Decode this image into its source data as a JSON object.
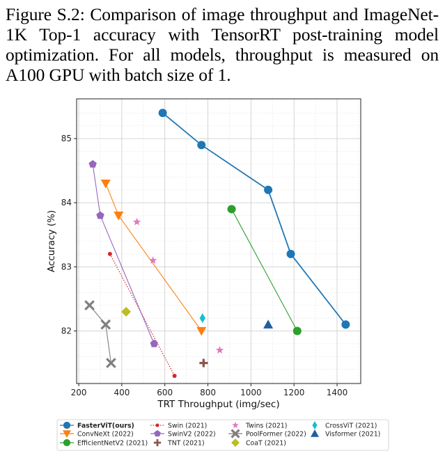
{
  "caption": "Figure S.2: Comparison of image throughput and ImageNet-1K Top-1 accuracy with TensorRT post-training model optimization. For all models, throughput is measured on A100 GPU with batch size of 1.",
  "chart_data": {
    "type": "scatter",
    "xlabel": "TRT Throughput (img/sec)",
    "ylabel": "Accuracy (%)",
    "xlim": [
      190,
      1510
    ],
    "ylim": [
      81.18,
      85.62
    ],
    "xticks": [
      200,
      400,
      600,
      800,
      1000,
      1200,
      1400
    ],
    "yticks": [
      82,
      83,
      84,
      85
    ],
    "grid": true,
    "legend_placement": "bottom",
    "series": [
      {
        "name": "FasterViT(ours)",
        "color": "#1f77b4",
        "marker": "circle",
        "line": "solid",
        "size": 6,
        "x": [
          590,
          770,
          1080,
          1185,
          1440
        ],
        "y": [
          85.4,
          84.9,
          84.2,
          83.2,
          82.1
        ]
      },
      {
        "name": "ConvNeXt (2022)",
        "color": "#ff7f0e",
        "marker": "triangle-down",
        "line": "solid",
        "size": 7,
        "x": [
          325,
          385,
          770
        ],
        "y": [
          84.3,
          83.8,
          82.0
        ]
      },
      {
        "name": "EfficientNetV2 (2021)",
        "color": "#2ca02c",
        "marker": "circle",
        "line": "solid",
        "size": 6,
        "x": [
          910,
          1215
        ],
        "y": [
          83.9,
          82.0
        ]
      },
      {
        "name": "Swin (2021)",
        "color": "#d62728",
        "marker": "small-circle",
        "line": "dotted",
        "size": 3,
        "x": [
          345,
          645
        ],
        "y": [
          83.2,
          81.3
        ]
      },
      {
        "name": "SwinV2 (2022)",
        "color": "#9467bd",
        "marker": "pentagon",
        "line": "solid",
        "size": 6,
        "x": [
          265,
          300,
          550
        ],
        "y": [
          84.6,
          83.8,
          81.8
        ]
      },
      {
        "name": "TNT (2021)",
        "color": "#8c564b",
        "marker": "plus",
        "line": "none",
        "size": 6,
        "x": [
          780
        ],
        "y": [
          81.5
        ]
      },
      {
        "name": "Twins (2021)",
        "color": "#e377c2",
        "marker": "star",
        "line": "none",
        "size": 6,
        "x": [
          470,
          545,
          855
        ],
        "y": [
          83.7,
          83.1,
          81.7
        ]
      },
      {
        "name": "PoolFormer (2022)",
        "color": "#7f7f7f",
        "marker": "x",
        "line": "solid",
        "size": 6,
        "x": [
          250,
          325,
          350
        ],
        "y": [
          82.4,
          82.1,
          81.5
        ]
      },
      {
        "name": "CoaT (2021)",
        "color": "#bcbd22",
        "marker": "diamond",
        "line": "none",
        "size": 7,
        "x": [
          420
        ],
        "y": [
          82.3
        ]
      },
      {
        "name": "CrossViT (2021)",
        "color": "#17becf",
        "marker": "thin-diamond",
        "line": "none",
        "size": 7,
        "x": [
          775
        ],
        "y": [
          82.2
        ]
      },
      {
        "name": "Visformer (2021)",
        "color": "#1f5f9f",
        "marker": "triangle-up",
        "line": "none",
        "size": 7,
        "x": [
          1080
        ],
        "y": [
          82.1
        ]
      }
    ]
  }
}
